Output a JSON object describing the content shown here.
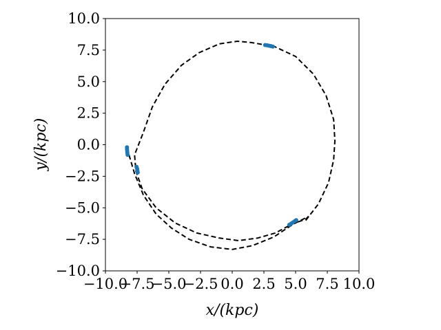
{
  "chart_data": {
    "type": "scatter",
    "title": "",
    "xlabel": "x/(kpc)",
    "ylabel": "y/(kpc)",
    "xlim": [
      -10,
      10
    ],
    "ylim": [
      -10,
      10
    ],
    "grid": false,
    "legend": "none",
    "x_ticks": [
      "−10.0",
      "−7.5",
      "−5.0",
      "−2.5",
      "0.0",
      "2.5",
      "5.0",
      "7.5",
      "10.0"
    ],
    "y_ticks": [
      "−10.0",
      "−7.5",
      "−5.0",
      "−2.5",
      "0.0",
      "2.5",
      "5.0",
      "7.5",
      "10.0"
    ],
    "orbit_path": {
      "style": "dashed",
      "color": "#000000",
      "points": [
        [
          5.8,
          -6.0
        ],
        [
          6.8,
          -4.7
        ],
        [
          7.6,
          -3.0
        ],
        [
          8.0,
          -1.2
        ],
        [
          8.1,
          0.3
        ],
        [
          8.0,
          2.0
        ],
        [
          7.4,
          3.9
        ],
        [
          6.4,
          5.6
        ],
        [
          5.0,
          7.0
        ],
        [
          3.3,
          7.8
        ],
        [
          1.5,
          8.1
        ],
        [
          0.4,
          8.2
        ],
        [
          -1.0,
          8.0
        ],
        [
          -2.6,
          7.3
        ],
        [
          -4.0,
          6.3
        ],
        [
          -5.3,
          4.8
        ],
        [
          -6.3,
          3.0
        ],
        [
          -7.0,
          1.0
        ],
        [
          -7.7,
          -0.8
        ],
        [
          -7.6,
          -2.1
        ],
        [
          -7.1,
          -3.5
        ],
        [
          -6.0,
          -5.0
        ],
        [
          -4.5,
          -6.2
        ],
        [
          -2.8,
          -7.0
        ],
        [
          -1.0,
          -7.4
        ],
        [
          0.5,
          -7.6
        ],
        [
          2.0,
          -7.4
        ],
        [
          3.4,
          -7.0
        ],
        [
          4.7,
          -6.3
        ],
        [
          5.8,
          -5.9
        ],
        [
          6.0,
          -5.7
        ],
        [
          4.8,
          -6.3
        ],
        [
          3.3,
          -7.3
        ],
        [
          1.6,
          -8.0
        ],
        [
          0.0,
          -8.3
        ],
        [
          -1.7,
          -8.1
        ],
        [
          -3.4,
          -7.5
        ],
        [
          -4.8,
          -6.6
        ],
        [
          -6.0,
          -5.5
        ],
        [
          -7.0,
          -4.0
        ],
        [
          -7.7,
          -2.3
        ],
        [
          -8.2,
          -0.6
        ]
      ]
    },
    "scatter_color": "#1f77b4",
    "scatter_clusters": [
      {
        "points": [
          [
            2.6,
            7.9
          ],
          [
            2.75,
            7.88
          ],
          [
            2.9,
            7.85
          ],
          [
            3.05,
            7.82
          ],
          [
            3.2,
            7.78
          ]
        ]
      },
      {
        "points": [
          [
            -8.3,
            -0.2
          ],
          [
            -8.3,
            -0.35
          ],
          [
            -8.28,
            -0.5
          ],
          [
            -8.27,
            -0.65
          ],
          [
            -8.25,
            -0.8
          ]
        ]
      },
      {
        "points": [
          [
            -7.55,
            -1.75
          ],
          [
            -7.5,
            -1.9
          ],
          [
            -7.48,
            -2.05
          ],
          [
            -7.45,
            -2.2
          ]
        ]
      },
      {
        "points": [
          [
            4.5,
            -6.35
          ],
          [
            4.65,
            -6.25
          ],
          [
            4.8,
            -6.15
          ],
          [
            4.95,
            -6.05
          ],
          [
            5.05,
            -5.98
          ]
        ]
      }
    ]
  }
}
